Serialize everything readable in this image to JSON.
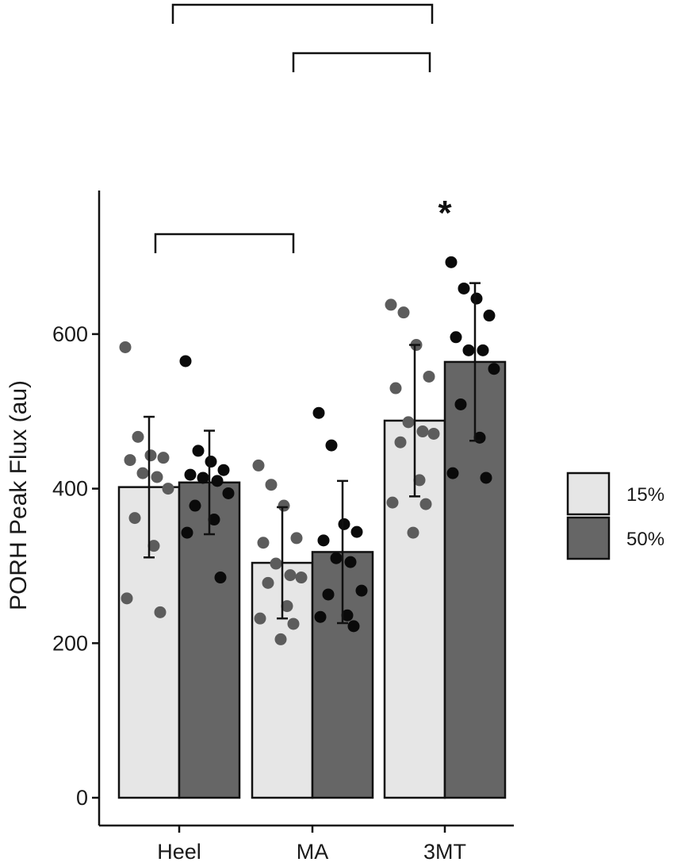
{
  "chart_data": {
    "type": "bar",
    "title": "",
    "xlabel": "",
    "ylabel": "PORH Peak Flux (au)",
    "ylim": [
      0,
      740
    ],
    "yticks": [
      0,
      200,
      400,
      600
    ],
    "categories": [
      "Heel",
      "MA",
      "3MT"
    ],
    "series": [
      {
        "name": "15%",
        "color": "#e6e6e6",
        "point_color": "#5c5c5c",
        "values": [
          402,
          304,
          488
        ],
        "sd": [
          91,
          72,
          98
        ],
        "points": [
          [
            583,
            467,
            443,
            440,
            437,
            420,
            415,
            400,
            362,
            326,
            258,
            240
          ],
          [
            430,
            405,
            378,
            336,
            330,
            303,
            288,
            285,
            278,
            248,
            232,
            225,
            205
          ],
          [
            638,
            628,
            586,
            545,
            530,
            486,
            474,
            471,
            460,
            411,
            382,
            380,
            343
          ]
        ]
      },
      {
        "name": "50%",
        "color": "#666666",
        "point_color": "#0a0a0a",
        "values": [
          408,
          318,
          564
        ],
        "sd": [
          67,
          92,
          102
        ],
        "points": [
          [
            565,
            449,
            435,
            424,
            418,
            414,
            410,
            394,
            378,
            360,
            343,
            285
          ],
          [
            498,
            456,
            354,
            344,
            333,
            310,
            305,
            268,
            263,
            236,
            234,
            222
          ],
          [
            693,
            659,
            646,
            624,
            596,
            579,
            579,
            555,
            509,
            466,
            420,
            414
          ]
        ]
      }
    ],
    "significance": [
      {
        "from": "Heel",
        "to": "MA",
        "series": "15%"
      },
      {
        "from": "Heel",
        "to": "3MT",
        "series": "50%"
      },
      {
        "from": "MA",
        "to": "3MT",
        "series": "50%"
      }
    ],
    "asterisk": {
      "label": "*",
      "category": "3MT",
      "series": "50%"
    },
    "legend_position": "right",
    "grid": false
  }
}
